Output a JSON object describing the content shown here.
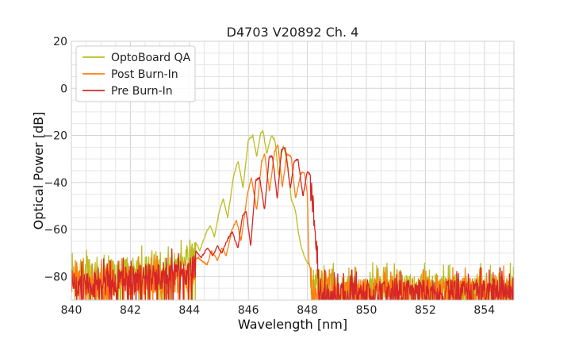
{
  "chart_data": {
    "type": "line",
    "title": "D4703 V20892 Ch. 4",
    "xlabel": "Wavelength [nm]",
    "ylabel": "Optical Power [dB]",
    "xlim": [
      840,
      855
    ],
    "ylim": [
      -90,
      20
    ],
    "xticks": [
      "840",
      "842",
      "844",
      "846",
      "848",
      "850",
      "852",
      "854"
    ],
    "yticks": [
      "20",
      "0",
      "−20",
      "−40",
      "−60",
      "−80"
    ],
    "grid": true,
    "legend_position": "top-left",
    "series": [
      {
        "name": "OptoBoard QA",
        "color": "#bcbd22",
        "points": [
          [
            840.0,
            -73
          ],
          [
            843.3,
            -71
          ],
          [
            843.7,
            -69
          ],
          [
            844.0,
            -66
          ],
          [
            844.2,
            -65
          ],
          [
            844.35,
            -69
          ],
          [
            844.55,
            -62
          ],
          [
            844.7,
            -58
          ],
          [
            844.85,
            -63
          ],
          [
            845.0,
            -53
          ],
          [
            845.15,
            -47
          ],
          [
            845.3,
            -55
          ],
          [
            845.5,
            -37
          ],
          [
            845.65,
            -31
          ],
          [
            845.82,
            -42
          ],
          [
            846.0,
            -22
          ],
          [
            846.15,
            -20
          ],
          [
            846.28,
            -29
          ],
          [
            846.42,
            -19
          ],
          [
            846.5,
            -18
          ],
          [
            846.62,
            -28
          ],
          [
            846.78,
            -20
          ],
          [
            846.9,
            -22
          ],
          [
            847.02,
            -37
          ],
          [
            847.18,
            -24
          ],
          [
            847.32,
            -31
          ],
          [
            847.45,
            -47
          ],
          [
            847.6,
            -52
          ],
          [
            847.7,
            -62
          ],
          [
            847.8,
            -68
          ],
          [
            847.95,
            -73
          ],
          [
            848.1,
            -76
          ],
          [
            849.0,
            -79
          ],
          [
            855.0,
            -79
          ]
        ]
      },
      {
        "name": "Post Burn-In",
        "color": "#ff7f0e",
        "points": [
          [
            840.0,
            -77
          ],
          [
            844.0,
            -75
          ],
          [
            844.3,
            -72
          ],
          [
            844.6,
            -75
          ],
          [
            844.75,
            -69
          ],
          [
            844.95,
            -73
          ],
          [
            845.1,
            -68
          ],
          [
            845.25,
            -71
          ],
          [
            845.45,
            -60
          ],
          [
            845.6,
            -56
          ],
          [
            845.75,
            -65
          ],
          [
            845.95,
            -46
          ],
          [
            846.1,
            -38
          ],
          [
            846.28,
            -52
          ],
          [
            846.45,
            -31
          ],
          [
            846.55,
            -28
          ],
          [
            846.72,
            -44
          ],
          [
            846.88,
            -27
          ],
          [
            847.0,
            -24
          ],
          [
            847.15,
            -42
          ],
          [
            847.3,
            -28
          ],
          [
            847.45,
            -29
          ],
          [
            847.6,
            -47
          ],
          [
            847.78,
            -36
          ],
          [
            847.9,
            -36
          ],
          [
            848.0,
            -45
          ],
          [
            848.05,
            -74
          ],
          [
            848.2,
            -81
          ],
          [
            855.0,
            -80
          ]
        ]
      },
      {
        "name": "Pre Burn-In",
        "color": "#d62728",
        "points": [
          [
            840.0,
            -79
          ],
          [
            844.0,
            -72
          ],
          [
            844.2,
            -69
          ],
          [
            844.4,
            -72
          ],
          [
            844.6,
            -68
          ],
          [
            844.8,
            -71
          ],
          [
            844.95,
            -67
          ],
          [
            845.1,
            -70
          ],
          [
            845.3,
            -64
          ],
          [
            845.45,
            -61
          ],
          [
            845.65,
            -68
          ],
          [
            845.8,
            -54
          ],
          [
            845.92,
            -52
          ],
          [
            846.08,
            -67
          ],
          [
            846.25,
            -39
          ],
          [
            846.38,
            -38
          ],
          [
            846.55,
            -52
          ],
          [
            846.7,
            -29
          ],
          [
            846.82,
            -29
          ],
          [
            846.98,
            -47
          ],
          [
            847.12,
            -26
          ],
          [
            847.25,
            -25
          ],
          [
            847.42,
            -43
          ],
          [
            847.55,
            -31
          ],
          [
            847.68,
            -30
          ],
          [
            847.85,
            -46
          ],
          [
            848.0,
            -35
          ],
          [
            848.15,
            -38
          ],
          [
            848.28,
            -55
          ],
          [
            848.4,
            -79
          ],
          [
            848.5,
            -82
          ],
          [
            855.0,
            -81
          ]
        ]
      }
    ]
  }
}
